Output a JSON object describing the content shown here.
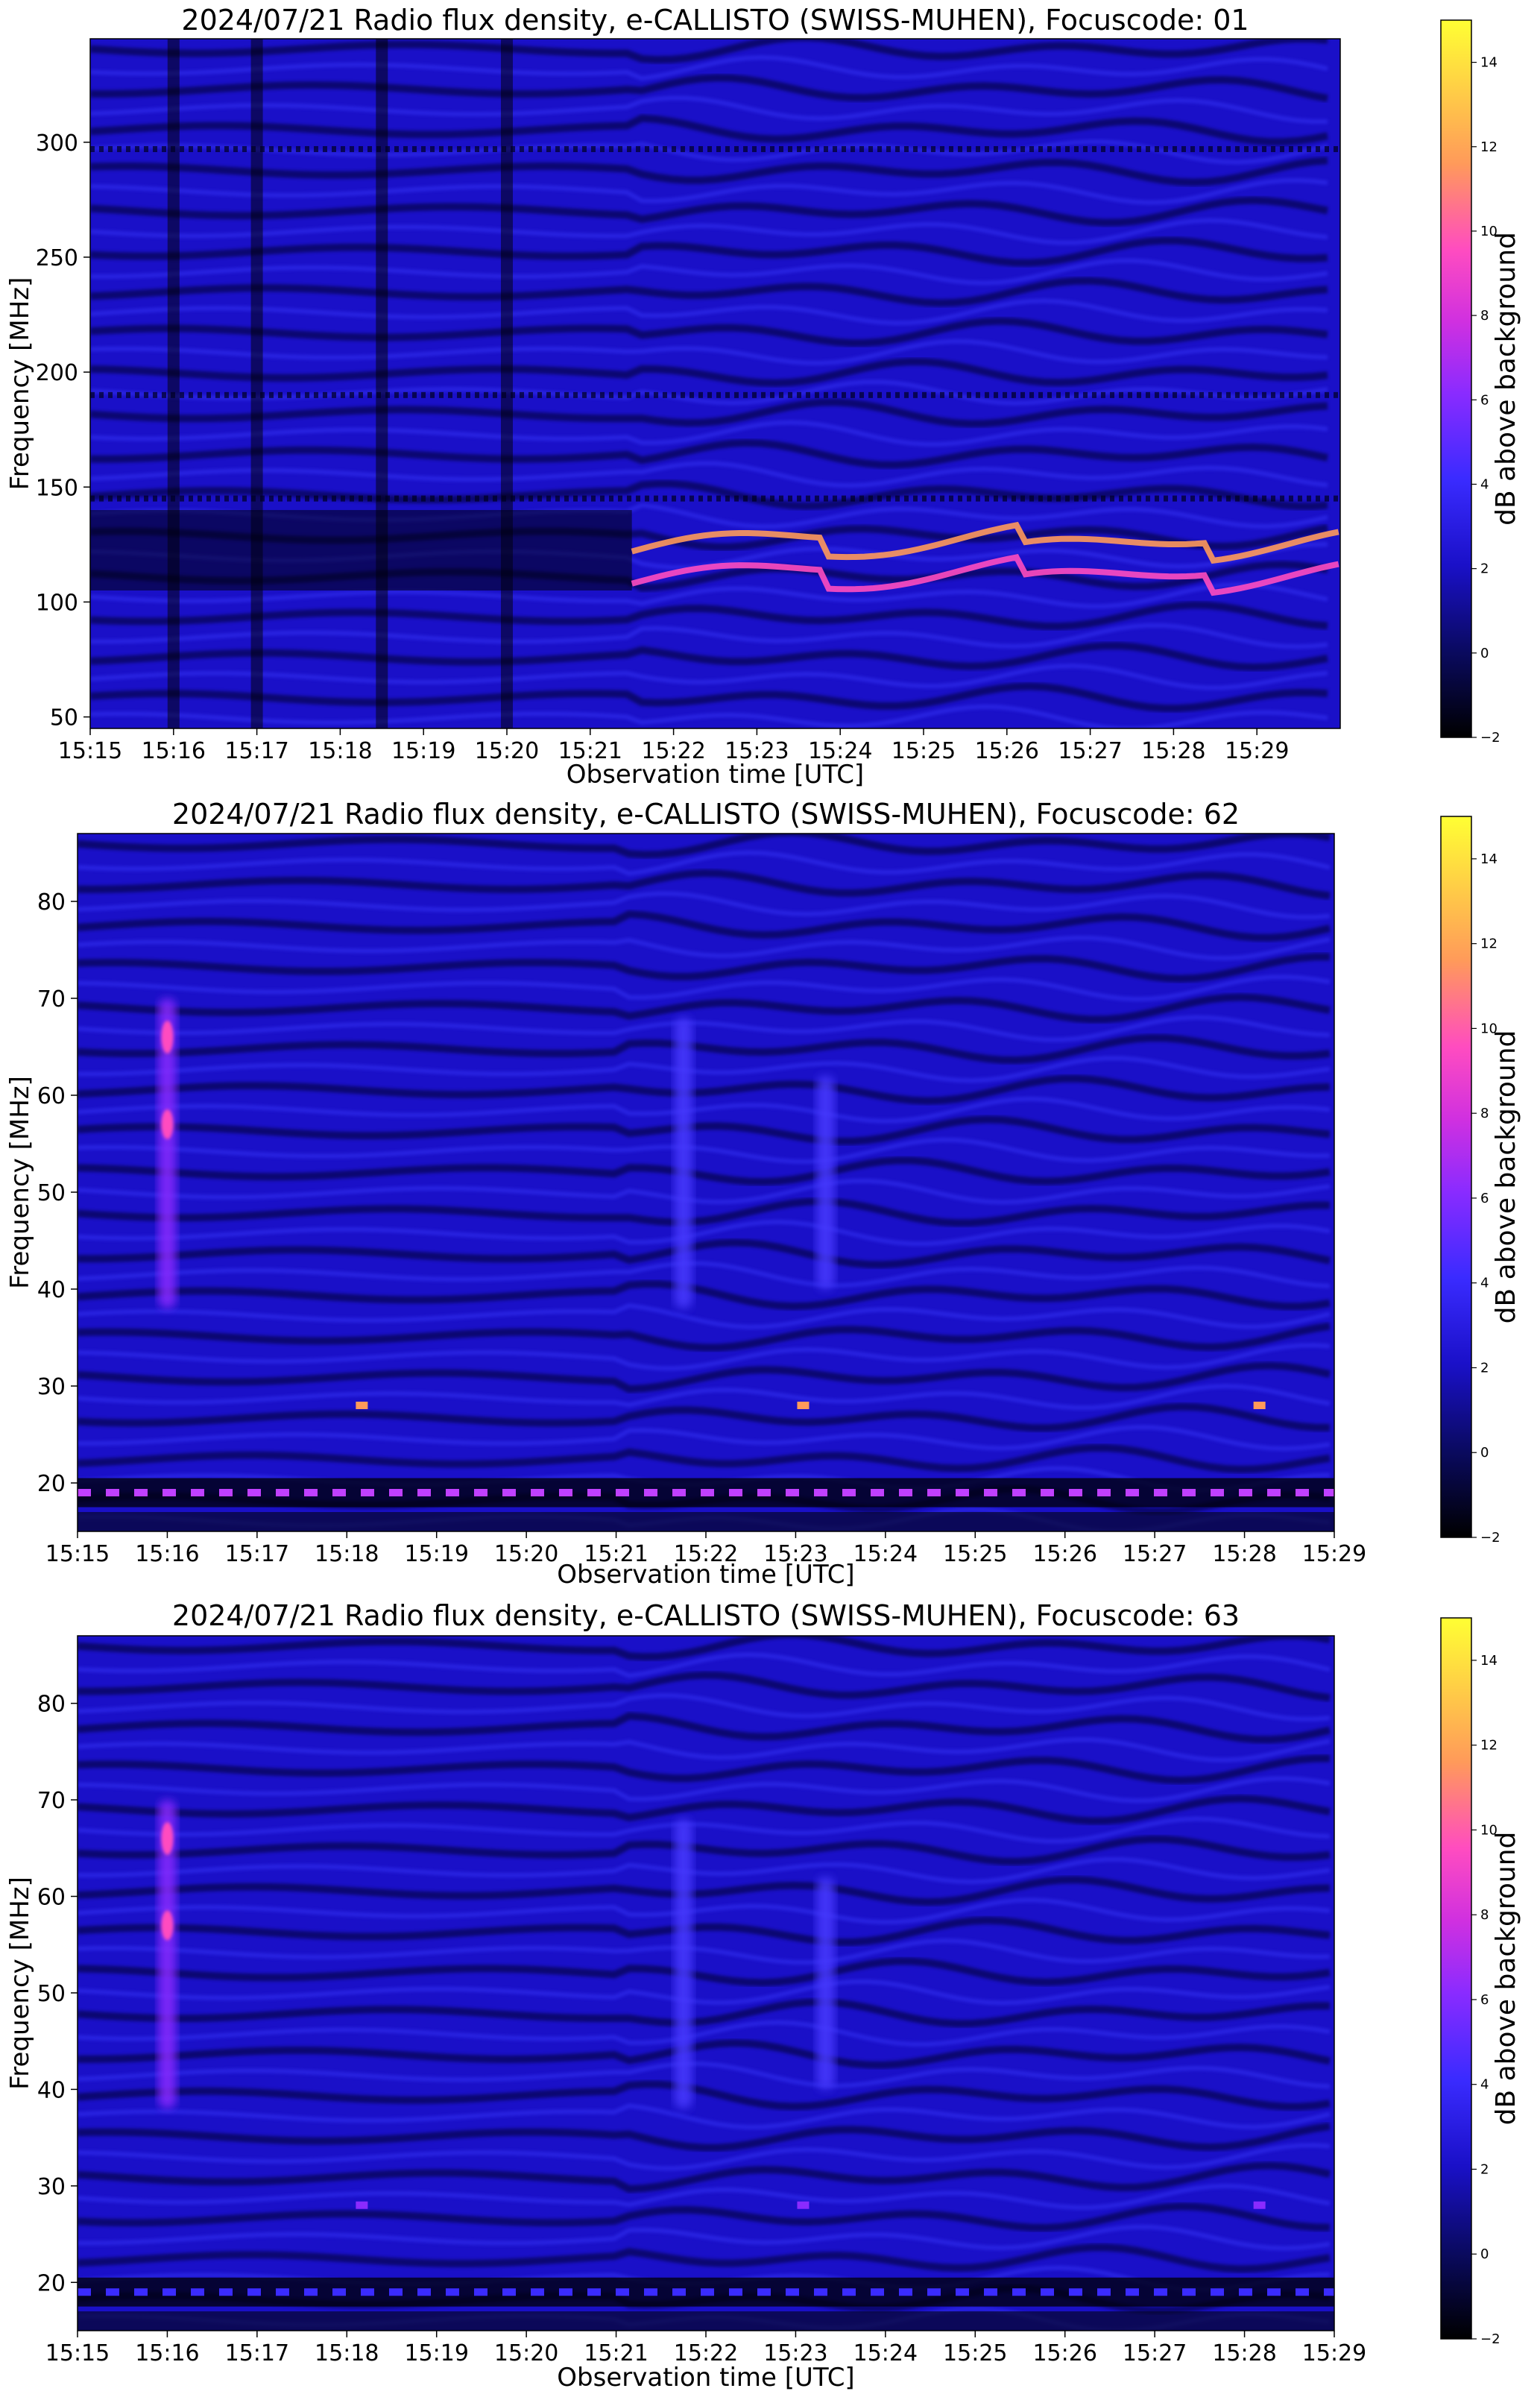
{
  "colors": {
    "background_spectrogram": "#1a10c8",
    "colormap": [
      "#000000",
      "#1a10c8",
      "#3a2bff",
      "#8a2bff",
      "#ff4cc0",
      "#ff9a5a",
      "#ffff33"
    ]
  },
  "chart_data": [
    {
      "type": "heatmap",
      "title": "2024/07/21  Radio flux density, e-CALLISTO (SWISS-MUHEN), Focuscode: 01",
      "xlabel": "Observation time [UTC]",
      "ylabel": "Frequency [MHz]",
      "colorbar_label": "dB above background",
      "x_ticks": [
        "15:15",
        "15:16",
        "15:17",
        "15:18",
        "15:19",
        "15:20",
        "15:21",
        "15:22",
        "15:23",
        "15:24",
        "15:25",
        "15:26",
        "15:27",
        "15:28",
        "15:29"
      ],
      "x_range": [
        "15:15",
        "15:30"
      ],
      "y_ticks": [
        50,
        100,
        150,
        200,
        250,
        300
      ],
      "ylim": [
        45,
        345
      ],
      "colorbar_ticks": [
        -2,
        0,
        2,
        4,
        6,
        8,
        10,
        12,
        14
      ],
      "colorbar_range": [
        -2,
        15
      ],
      "features": {
        "bright_bands": [
          {
            "name": "lower emission band",
            "start": "15:21:30",
            "end": "15:30",
            "freq_mhz": [
              105,
              130
            ],
            "peak_db": 10
          }
        ],
        "dark_columns": [
          "15:16",
          "15:17",
          "15:18:30",
          "15:20"
        ],
        "interference_lines_mhz": [
          145,
          190,
          297
        ]
      }
    },
    {
      "type": "heatmap",
      "title": "2024/07/21  Radio flux density, e-CALLISTO (SWISS-MUHEN), Focuscode: 62",
      "xlabel": "Observation time [UTC]",
      "ylabel": "Frequency [MHz]",
      "colorbar_label": "dB above background",
      "x_ticks": [
        "15:15",
        "15:16",
        "15:17",
        "15:18",
        "15:19",
        "15:20",
        "15:21",
        "15:22",
        "15:23",
        "15:24",
        "15:25",
        "15:26",
        "15:27",
        "15:28",
        "15:29"
      ],
      "x_range": [
        "15:15",
        "15:29"
      ],
      "y_ticks": [
        20,
        30,
        40,
        50,
        60,
        70,
        80
      ],
      "ylim": [
        15,
        87
      ],
      "colorbar_ticks": [
        -2,
        0,
        2,
        4,
        6,
        8,
        10,
        12,
        14
      ],
      "colorbar_range": [
        -2,
        15
      ],
      "features": {
        "bursts": [
          {
            "time": "15:16",
            "freq_mhz": [
              38,
              70
            ],
            "peak_db": 9
          },
          {
            "time": "15:21:45",
            "freq_mhz": [
              38,
              68
            ],
            "peak_db": 4
          },
          {
            "time": "15:23:20",
            "freq_mhz": [
              40,
              62
            ],
            "peak_db": 3
          }
        ],
        "spots": [
          {
            "time": "15:18:10",
            "freq_mhz": 28
          },
          {
            "time": "15:23:05",
            "freq_mhz": 28
          },
          {
            "time": "15:28:10",
            "freq_mhz": 28
          }
        ],
        "dashed_interference_mhz": 19
      }
    },
    {
      "type": "heatmap",
      "title": "2024/07/21  Radio flux density, e-CALLISTO (SWISS-MUHEN), Focuscode: 63",
      "xlabel": "Observation time [UTC]",
      "ylabel": "Frequency [MHz]",
      "colorbar_label": "dB above background",
      "x_ticks": [
        "15:15",
        "15:16",
        "15:17",
        "15:18",
        "15:19",
        "15:20",
        "15:21",
        "15:22",
        "15:23",
        "15:24",
        "15:25",
        "15:26",
        "15:27",
        "15:28",
        "15:29"
      ],
      "x_range": [
        "15:15",
        "15:29"
      ],
      "y_ticks": [
        20,
        30,
        40,
        50,
        60,
        70,
        80
      ],
      "ylim": [
        15,
        87
      ],
      "colorbar_ticks": [
        -2,
        0,
        2,
        4,
        6,
        8,
        10,
        12,
        14
      ],
      "colorbar_range": [
        -2,
        15
      ],
      "features": {
        "bursts": [
          {
            "time": "15:16",
            "freq_mhz": [
              38,
              70
            ],
            "peak_db": 10
          },
          {
            "time": "15:21:45",
            "freq_mhz": [
              38,
              68
            ],
            "peak_db": 4
          },
          {
            "time": "15:23:20",
            "freq_mhz": [
              40,
              62
            ],
            "peak_db": 2
          }
        ],
        "spots": [
          {
            "time": "15:18:10",
            "freq_mhz": 28
          },
          {
            "time": "15:23:05",
            "freq_mhz": 28
          },
          {
            "time": "15:28:10",
            "freq_mhz": 28
          }
        ],
        "dashed_interference_mhz": 19
      }
    }
  ]
}
